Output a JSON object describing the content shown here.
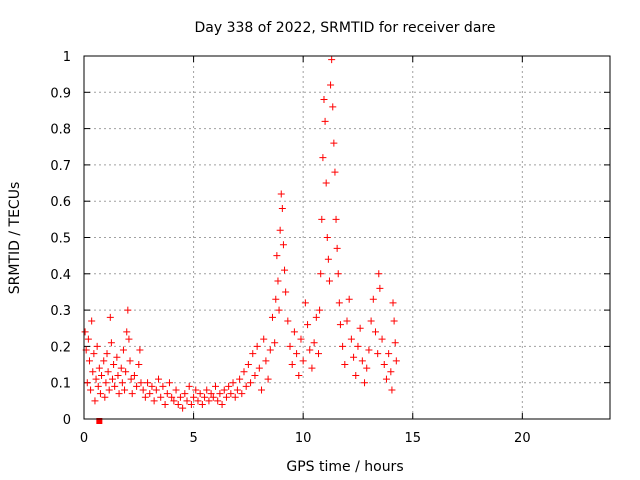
{
  "chart_data": {
    "type": "scatter",
    "title": "Day 338 of 2022, SRMTID for receiver dare",
    "xlabel": "GPS time / hours",
    "ylabel": "SRMTID / TECUs",
    "xlim": [
      0,
      24
    ],
    "ylim": [
      0,
      1
    ],
    "xticks": [
      0,
      5,
      10,
      15,
      20
    ],
    "yticks": [
      0,
      0.1,
      0.2,
      0.3,
      0.4,
      0.5,
      0.6,
      0.7,
      0.8,
      0.9,
      1
    ],
    "grid": true,
    "legend": "none",
    "marker": "plus",
    "color": "#ff0000",
    "series": [
      {
        "name": "SRMTID",
        "points": [
          [
            0.05,
            0.24
          ],
          [
            0.1,
            0.19
          ],
          [
            0.15,
            0.1
          ],
          [
            0.2,
            0.22
          ],
          [
            0.25,
            0.16
          ],
          [
            0.3,
            0.08
          ],
          [
            0.35,
            0.27
          ],
          [
            0.4,
            0.13
          ],
          [
            0.45,
            0.18
          ],
          [
            0.5,
            0.05
          ],
          [
            0.55,
            0.11
          ],
          [
            0.6,
            0.2
          ],
          [
            0.65,
            0.09
          ],
          [
            0.7,
            0.14
          ],
          [
            0.75,
            0.07
          ],
          [
            0.8,
            0.12
          ],
          [
            0.9,
            0.16
          ],
          [
            0.95,
            0.06
          ],
          [
            1.0,
            0.1
          ],
          [
            1.05,
            0.18
          ],
          [
            1.1,
            0.13
          ],
          [
            1.15,
            0.08
          ],
          [
            1.2,
            0.28
          ],
          [
            1.25,
            0.21
          ],
          [
            1.3,
            0.11
          ],
          [
            1.35,
            0.15
          ],
          [
            1.4,
            0.09
          ],
          [
            1.5,
            0.17
          ],
          [
            1.55,
            0.12
          ],
          [
            1.6,
            0.07
          ],
          [
            1.7,
            0.14
          ],
          [
            1.75,
            0.1
          ],
          [
            1.8,
            0.19
          ],
          [
            1.85,
            0.08
          ],
          [
            1.9,
            0.13
          ],
          [
            1.95,
            0.24
          ],
          [
            2.0,
            0.3
          ],
          [
            2.05,
            0.22
          ],
          [
            2.1,
            0.16
          ],
          [
            2.15,
            0.11
          ],
          [
            2.2,
            0.07
          ],
          [
            2.3,
            0.12
          ],
          [
            2.4,
            0.09
          ],
          [
            2.5,
            0.15
          ],
          [
            2.55,
            0.19
          ],
          [
            2.6,
            0.1
          ],
          [
            2.7,
            0.08
          ],
          [
            2.8,
            0.06
          ],
          [
            2.9,
            0.1
          ],
          [
            3.0,
            0.07
          ],
          [
            3.1,
            0.09
          ],
          [
            3.2,
            0.05
          ],
          [
            3.3,
            0.08
          ],
          [
            3.4,
            0.11
          ],
          [
            3.5,
            0.06
          ],
          [
            3.6,
            0.09
          ],
          [
            3.7,
            0.04
          ],
          [
            3.8,
            0.07
          ],
          [
            3.9,
            0.1
          ],
          [
            4.0,
            0.06
          ],
          [
            4.1,
            0.05
          ],
          [
            4.2,
            0.08
          ],
          [
            4.3,
            0.04
          ],
          [
            4.4,
            0.06
          ],
          [
            4.5,
            0.03
          ],
          [
            4.6,
            0.07
          ],
          [
            4.7,
            0.05
          ],
          [
            4.8,
            0.09
          ],
          [
            4.9,
            0.04
          ],
          [
            5.0,
            0.06
          ],
          [
            5.1,
            0.08
          ],
          [
            5.2,
            0.05
          ],
          [
            5.3,
            0.07
          ],
          [
            5.4,
            0.04
          ],
          [
            5.5,
            0.06
          ],
          [
            5.6,
            0.08
          ],
          [
            5.7,
            0.05
          ],
          [
            5.8,
            0.07
          ],
          [
            5.9,
            0.06
          ],
          [
            6.0,
            0.09
          ],
          [
            6.1,
            0.05
          ],
          [
            6.2,
            0.07
          ],
          [
            6.3,
            0.04
          ],
          [
            6.4,
            0.08
          ],
          [
            6.5,
            0.06
          ],
          [
            6.6,
            0.09
          ],
          [
            6.7,
            0.07
          ],
          [
            6.8,
            0.1
          ],
          [
            6.9,
            0.06
          ],
          [
            7.0,
            0.08
          ],
          [
            7.1,
            0.11
          ],
          [
            7.2,
            0.07
          ],
          [
            7.3,
            0.13
          ],
          [
            7.4,
            0.09
          ],
          [
            7.5,
            0.15
          ],
          [
            7.6,
            0.1
          ],
          [
            7.7,
            0.18
          ],
          [
            7.8,
            0.12
          ],
          [
            7.9,
            0.2
          ],
          [
            8.0,
            0.14
          ],
          [
            8.1,
            0.08
          ],
          [
            8.2,
            0.22
          ],
          [
            8.3,
            0.16
          ],
          [
            8.4,
            0.11
          ],
          [
            8.5,
            0.19
          ],
          [
            8.6,
            0.28
          ],
          [
            8.7,
            0.21
          ],
          [
            8.75,
            0.33
          ],
          [
            8.8,
            0.45
          ],
          [
            8.85,
            0.38
          ],
          [
            8.9,
            0.3
          ],
          [
            8.95,
            0.52
          ],
          [
            9.0,
            0.62
          ],
          [
            9.05,
            0.58
          ],
          [
            9.1,
            0.48
          ],
          [
            9.15,
            0.41
          ],
          [
            9.2,
            0.35
          ],
          [
            9.3,
            0.27
          ],
          [
            9.4,
            0.2
          ],
          [
            9.5,
            0.15
          ],
          [
            9.6,
            0.24
          ],
          [
            9.7,
            0.18
          ],
          [
            9.8,
            0.12
          ],
          [
            9.9,
            0.22
          ],
          [
            10.0,
            0.16
          ],
          [
            10.1,
            0.32
          ],
          [
            10.2,
            0.26
          ],
          [
            10.3,
            0.19
          ],
          [
            10.4,
            0.14
          ],
          [
            10.5,
            0.21
          ],
          [
            10.6,
            0.28
          ],
          [
            10.7,
            0.18
          ],
          [
            10.75,
            0.3
          ],
          [
            10.8,
            0.4
          ],
          [
            10.85,
            0.55
          ],
          [
            10.9,
            0.72
          ],
          [
            10.95,
            0.88
          ],
          [
            11.0,
            0.82
          ],
          [
            11.05,
            0.65
          ],
          [
            11.1,
            0.5
          ],
          [
            11.15,
            0.44
          ],
          [
            11.2,
            0.38
          ],
          [
            11.25,
            0.92
          ],
          [
            11.3,
            0.99
          ],
          [
            11.35,
            0.86
          ],
          [
            11.4,
            0.76
          ],
          [
            11.45,
            0.68
          ],
          [
            11.5,
            0.55
          ],
          [
            11.55,
            0.47
          ],
          [
            11.6,
            0.4
          ],
          [
            11.65,
            0.32
          ],
          [
            11.7,
            0.26
          ],
          [
            11.8,
            0.2
          ],
          [
            11.9,
            0.15
          ],
          [
            12.0,
            0.27
          ],
          [
            12.1,
            0.33
          ],
          [
            12.2,
            0.22
          ],
          [
            12.3,
            0.17
          ],
          [
            12.4,
            0.12
          ],
          [
            12.5,
            0.2
          ],
          [
            12.6,
            0.25
          ],
          [
            12.7,
            0.16
          ],
          [
            12.8,
            0.1
          ],
          [
            12.9,
            0.14
          ],
          [
            13.0,
            0.19
          ],
          [
            13.1,
            0.27
          ],
          [
            13.2,
            0.33
          ],
          [
            13.3,
            0.24
          ],
          [
            13.4,
            0.18
          ],
          [
            13.45,
            0.4
          ],
          [
            13.5,
            0.36
          ],
          [
            13.6,
            0.22
          ],
          [
            13.7,
            0.15
          ],
          [
            13.8,
            0.11
          ],
          [
            13.9,
            0.18
          ],
          [
            14.0,
            0.13
          ],
          [
            14.05,
            0.08
          ],
          [
            14.1,
            0.32
          ],
          [
            14.15,
            0.27
          ],
          [
            14.2,
            0.21
          ],
          [
            14.25,
            0.16
          ]
        ]
      },
      {
        "name": "marker",
        "points": [
          [
            0.7,
            0.0
          ]
        ]
      }
    ]
  }
}
